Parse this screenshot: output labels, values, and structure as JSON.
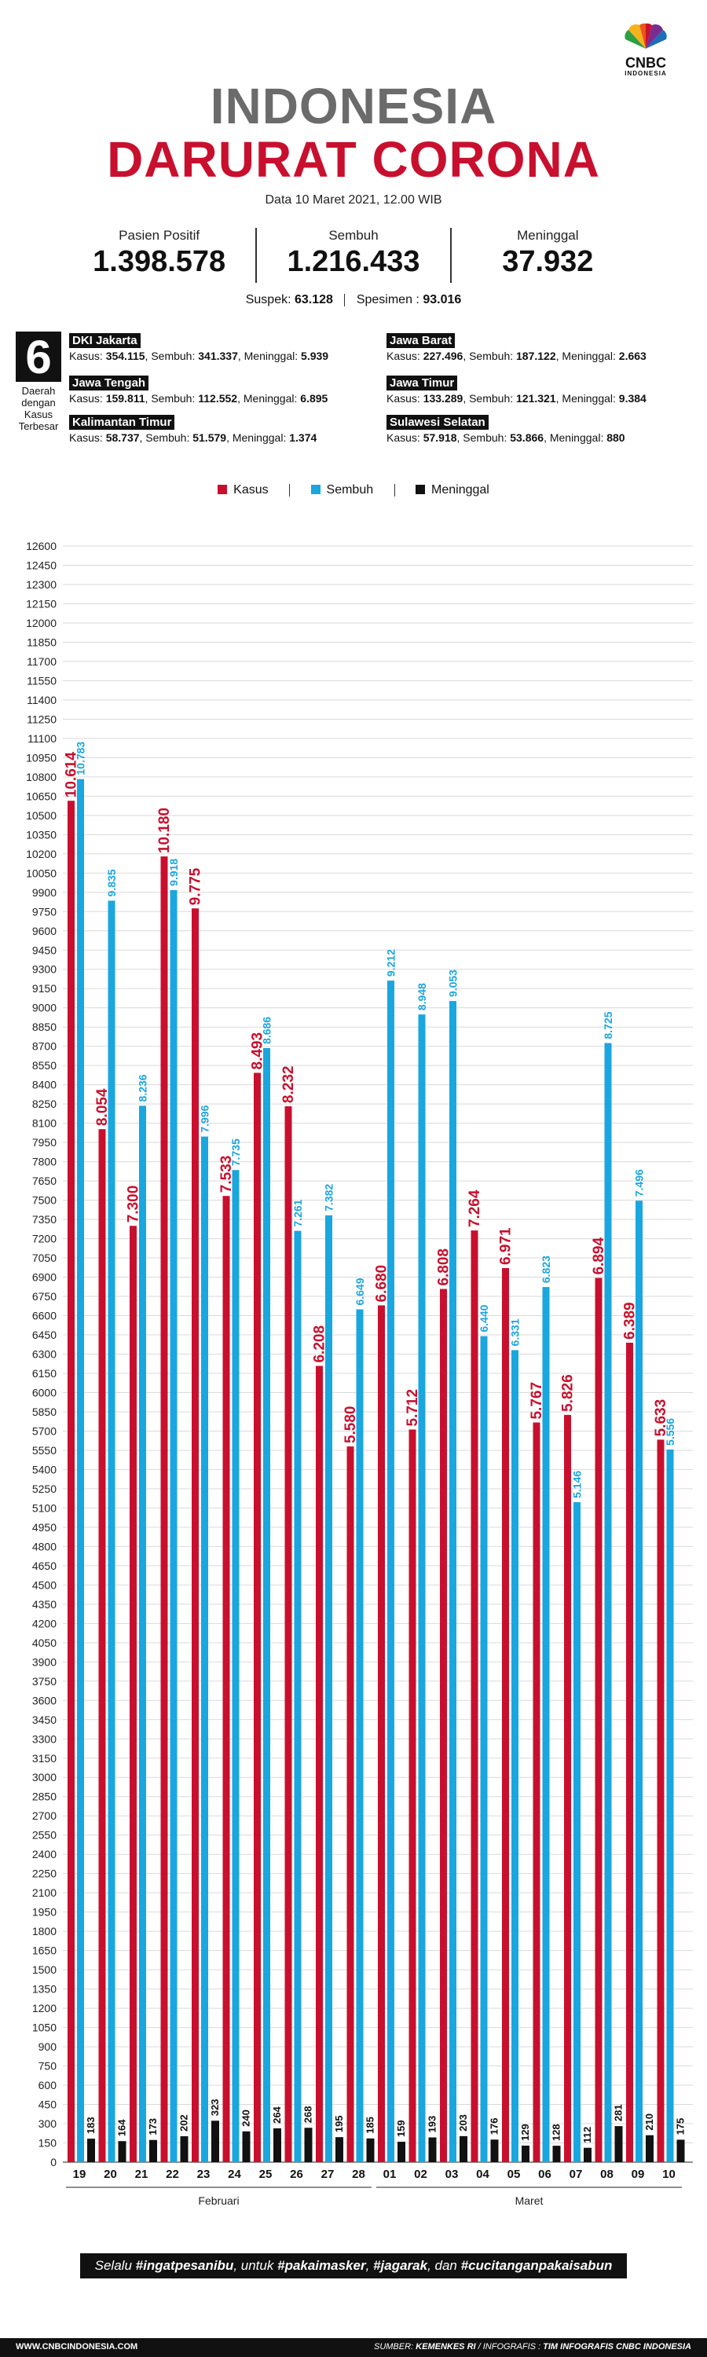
{
  "brand": {
    "name": "CNBC",
    "sub": "INDONESIA"
  },
  "title": {
    "line1": "INDONESIA",
    "line2": "DARURAT CORONA"
  },
  "date": "Data 10 Maret 2021, 12.00 WIB",
  "stats": [
    {
      "label": "Pasien Positif",
      "value": "1.398.578"
    },
    {
      "label": "Sembuh",
      "value": "1.216.433"
    },
    {
      "label": "Meninggal",
      "value": "37.932"
    }
  ],
  "substats": {
    "suspek_label": "Suspek:",
    "suspek": "63.128",
    "spesimen_label": "Spesimen :",
    "spesimen": "93.016"
  },
  "regions_block": {
    "count": "6",
    "caption": "Daerah dengan Kasus Terbesar",
    "items": [
      {
        "name": "DKI Jakarta",
        "kasus": "354.115",
        "sembuh": "341.337",
        "meninggal": "5.939"
      },
      {
        "name": "Jawa Barat",
        "kasus": "227.496",
        "sembuh": "187.122",
        "meninggal": "2.663"
      },
      {
        "name": "Jawa Tengah",
        "kasus": "159.811",
        "sembuh": "112.552",
        "meninggal": "6.895"
      },
      {
        "name": "Jawa Timur",
        "kasus": "133.289",
        "sembuh": "121.321",
        "meninggal": "9.384"
      },
      {
        "name": "Kalimantan Timur",
        "kasus": "58.737",
        "sembuh": "51.579",
        "meninggal": "1.374"
      },
      {
        "name": "Sulawesi Selatan",
        "kasus": "57.918",
        "sembuh": "53.866",
        "meninggal": "880"
      }
    ],
    "labels": {
      "kasus": "Kasus:",
      "sembuh": "Sembuh:",
      "meninggal": "Meninggal:"
    }
  },
  "legend": [
    "Kasus",
    "Sembuh",
    "Meninggal"
  ],
  "colors": {
    "kasus": "#c8102e",
    "sembuh": "#1aa6df",
    "meninggal": "#111111",
    "title_gray": "#6b6b6b"
  },
  "chart_data": {
    "type": "bar",
    "categories": [
      "19",
      "20",
      "21",
      "22",
      "23",
      "24",
      "25",
      "26",
      "27",
      "28",
      "01",
      "02",
      "03",
      "04",
      "05",
      "06",
      "07",
      "08",
      "09",
      "10"
    ],
    "month_groups": [
      {
        "label": "Februari",
        "count": 10
      },
      {
        "label": "Maret",
        "count": 10
      }
    ],
    "series": [
      {
        "name": "Kasus",
        "values": [
          10614,
          8054,
          7300,
          10180,
          9775,
          7533,
          8493,
          8232,
          6208,
          5580,
          6680,
          5712,
          6808,
          7264,
          6971,
          5767,
          5826,
          6894,
          6389,
          5633
        ],
        "labels": [
          "10.614",
          "8.054",
          "7.300",
          "10.180",
          "9.775",
          "7.533",
          "8.493",
          "8.232",
          "6.208",
          "5.580",
          "6.680",
          "5.712",
          "6.808",
          "7.264",
          "6.971",
          "5.767",
          "5.826",
          "6.894",
          "6.389",
          "5.633"
        ]
      },
      {
        "name": "Sembuh",
        "values": [
          10783,
          9835,
          8236,
          9918,
          7996,
          7735,
          8686,
          7261,
          7382,
          6649,
          9212,
          8948,
          9053,
          6440,
          6331,
          6823,
          5146,
          8725,
          7496,
          5556
        ],
        "labels": [
          "10.783",
          "9.835",
          "8.236",
          "9.918",
          "7.996",
          "7.735",
          "8.686",
          "7.261",
          "7.382",
          "6.649",
          "9.212",
          "8.948",
          "9.053",
          "6.440",
          "6.331",
          "6.823",
          "5.146",
          "8.725",
          "7.496",
          "5.556"
        ]
      },
      {
        "name": "Meninggal",
        "values": [
          183,
          164,
          173,
          202,
          323,
          240,
          264,
          268,
          195,
          185,
          159,
          193,
          203,
          176,
          129,
          128,
          112,
          281,
          210,
          175
        ],
        "labels": [
          "183",
          "164",
          "173",
          "202",
          "323",
          "240",
          "264",
          "268",
          "195",
          "185",
          "159",
          "193",
          "203",
          "176",
          "129",
          "128",
          "112",
          "281",
          "210",
          "175"
        ]
      }
    ],
    "ylim": [
      0,
      12600
    ],
    "ytick_step": 150,
    "grid": true
  },
  "banner": {
    "pre": "Selalu",
    "tag1": "#ingatpesanibu",
    "mid1": ", untuk",
    "tag2": "#pakaimasker",
    "mid2": ",",
    "tag3": "#jagarak",
    "mid3": ", dan",
    "tag4": "#cucitanganpakaisabun"
  },
  "footer": {
    "site": "WWW.CNBCINDONESIA.COM",
    "source_label": "SUMBER:",
    "source": "KEMENKES RI",
    "sep": " / ",
    "info_label": "INFOGRAFIS :",
    "info": "TIM INFOGRAFIS CNBC INDONESIA"
  }
}
